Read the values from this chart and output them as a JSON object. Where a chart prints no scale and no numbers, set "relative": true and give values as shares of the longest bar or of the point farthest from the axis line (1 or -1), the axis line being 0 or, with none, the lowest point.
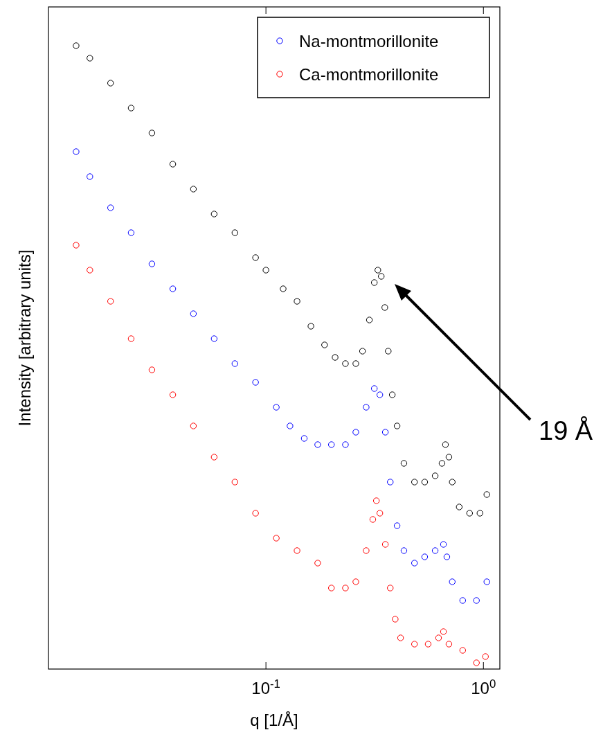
{
  "chart_data": {
    "type": "scatter",
    "relative": true,
    "log": "x",
    "marker": "circle",
    "xlabel": "q [1/Å]",
    "ylabel": "Intensity [arbitrary units]",
    "xlim": [
      0.01,
      1.19
    ],
    "xticks": [
      {
        "value": 0.1,
        "label": "10$^{-1}$"
      },
      {
        "value": 1,
        "label": "10$^{0}$"
      }
    ],
    "legend": "top right",
    "grid": false,
    "series": [
      {
        "color": "#000000",
        "x": [
          0.0134,
          0.0155,
          0.0193,
          0.024,
          0.0299,
          0.0373,
          0.0464,
          0.0578,
          0.072,
          0.0896,
          0.1,
          0.12,
          0.139,
          0.161,
          0.186,
          0.208,
          0.232,
          0.259,
          0.278,
          0.299,
          0.315,
          0.327,
          0.339,
          0.352,
          0.365,
          0.381,
          0.401,
          0.431,
          0.482,
          0.537,
          0.6,
          0.645,
          0.669,
          0.694,
          0.719,
          0.774,
          0.864,
          0.964,
          1.037
        ],
        "values": [
          1.0,
          0.98,
          0.94,
          0.9,
          0.86,
          0.81,
          0.77,
          0.73,
          0.7,
          0.66,
          0.64,
          0.61,
          0.59,
          0.55,
          0.52,
          0.5,
          0.49,
          0.49,
          0.51,
          0.56,
          0.62,
          0.64,
          0.63,
          0.58,
          0.51,
          0.44,
          0.39,
          0.33,
          0.3,
          0.3,
          0.31,
          0.33,
          0.36,
          0.34,
          0.3,
          0.26,
          0.25,
          0.25,
          0.28
        ]
      },
      {
        "name": "Na-montmorillonite",
        "color": "#0000ff",
        "x": [
          0.0134,
          0.0155,
          0.0193,
          0.024,
          0.0299,
          0.0373,
          0.0464,
          0.0578,
          0.072,
          0.0896,
          0.1116,
          0.129,
          0.15,
          0.173,
          0.2,
          0.232,
          0.259,
          0.289,
          0.315,
          0.334,
          0.354,
          0.373,
          0.401,
          0.431,
          0.482,
          0.537,
          0.6,
          0.655,
          0.679,
          0.719,
          0.803,
          0.929,
          1.037
        ],
        "values": [
          0.83,
          0.79,
          0.74,
          0.7,
          0.65,
          0.61,
          0.57,
          0.53,
          0.49,
          0.46,
          0.42,
          0.39,
          0.37,
          0.36,
          0.36,
          0.36,
          0.38,
          0.42,
          0.45,
          0.44,
          0.38,
          0.3,
          0.23,
          0.19,
          0.17,
          0.18,
          0.19,
          0.2,
          0.18,
          0.14,
          0.11,
          0.11,
          0.14
        ]
      },
      {
        "name": "Ca-montmorillonite",
        "color": "#ff0000",
        "x": [
          0.0134,
          0.0155,
          0.0193,
          0.024,
          0.0299,
          0.0373,
          0.0464,
          0.0578,
          0.072,
          0.0896,
          0.1116,
          0.139,
          0.173,
          0.2,
          0.232,
          0.259,
          0.289,
          0.31,
          0.322,
          0.334,
          0.354,
          0.373,
          0.393,
          0.416,
          0.482,
          0.557,
          0.622,
          0.655,
          0.694,
          0.803,
          0.929,
          1.022
        ],
        "values": [
          0.68,
          0.64,
          0.59,
          0.53,
          0.48,
          0.44,
          0.39,
          0.34,
          0.3,
          0.25,
          0.21,
          0.19,
          0.17,
          0.13,
          0.13,
          0.14,
          0.19,
          0.24,
          0.27,
          0.25,
          0.2,
          0.13,
          0.08,
          0.05,
          0.04,
          0.04,
          0.05,
          0.06,
          0.04,
          0.03,
          0.01,
          0.02
        ]
      }
    ],
    "annotations": [
      "19 Å"
    ]
  }
}
